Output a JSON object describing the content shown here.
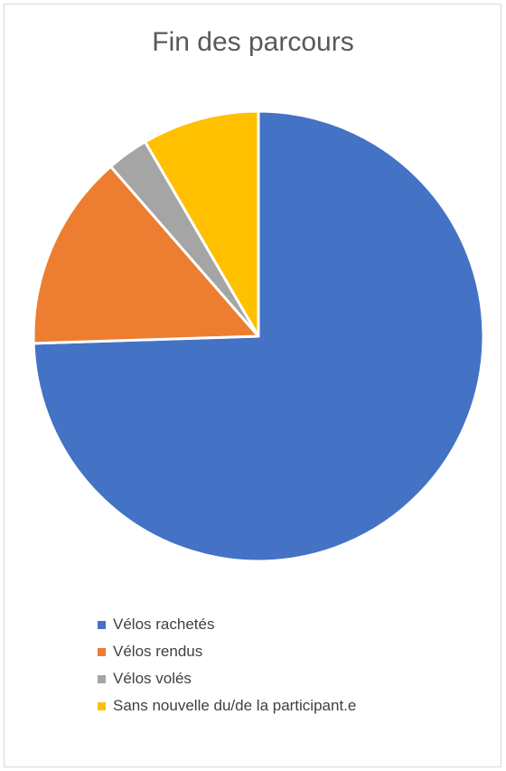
{
  "chart_data": {
    "type": "pie",
    "title": "Fin des parcours",
    "categories": [
      "Vélos rachetés",
      "Vélos rendus",
      "Vélos volés",
      "Sans nouvelle du/de la participant.e"
    ],
    "values": [
      74.5,
      14.1,
      3.0,
      8.4
    ],
    "colors": [
      "#4472C4",
      "#ED7D31",
      "#A5A5A5",
      "#FFC000"
    ],
    "start_angle_deg": 0,
    "direction": "clockwise",
    "legend_position": "bottom"
  }
}
